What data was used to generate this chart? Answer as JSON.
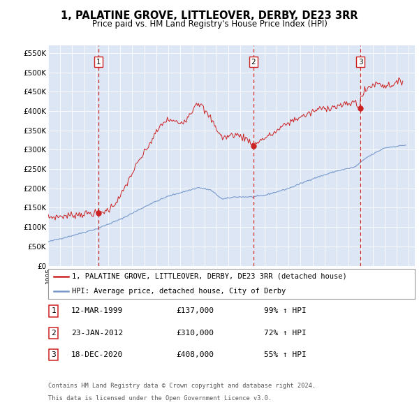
{
  "title": "1, PALATINE GROVE, LITTLEOVER, DERBY, DE23 3RR",
  "subtitle": "Price paid vs. HM Land Registry's House Price Index (HPI)",
  "ylabel_ticks": [
    0,
    50000,
    100000,
    150000,
    200000,
    250000,
    300000,
    350000,
    400000,
    450000,
    500000,
    550000
  ],
  "ylabel_labels": [
    "£0",
    "£50K",
    "£100K",
    "£150K",
    "£200K",
    "£250K",
    "£300K",
    "£350K",
    "£400K",
    "£450K",
    "£500K",
    "£550K"
  ],
  "ylim": [
    0,
    570000
  ],
  "xlim_start": 1995.0,
  "xlim_end": 2025.5,
  "background_color": "#dce6f5",
  "red_line_color": "#cc2222",
  "blue_line_color": "#7799cc",
  "dashed_line_color": "#cc2222",
  "sale_dates": [
    1999.19,
    2012.06,
    2020.97
  ],
  "sale_prices": [
    137000,
    310000,
    408000
  ],
  "sale_labels": [
    "1",
    "2",
    "3"
  ],
  "sale_info": [
    {
      "label": "1",
      "date": "12-MAR-1999",
      "price": "£137,000",
      "hpi": "99% ↑ HPI"
    },
    {
      "label": "2",
      "date": "23-JAN-2012",
      "price": "£310,000",
      "hpi": "72% ↑ HPI"
    },
    {
      "label": "3",
      "date": "18-DEC-2020",
      "price": "£408,000",
      "hpi": "55% ↑ HPI"
    }
  ],
  "legend_entries": [
    {
      "label": "1, PALATINE GROVE, LITTLEOVER, DERBY, DE23 3RR (detached house)",
      "color": "#cc2222"
    },
    {
      "label": "HPI: Average price, detached house, City of Derby",
      "color": "#7799cc"
    }
  ],
  "footer": [
    "Contains HM Land Registry data © Crown copyright and database right 2024.",
    "This data is licensed under the Open Government Licence v3.0."
  ]
}
